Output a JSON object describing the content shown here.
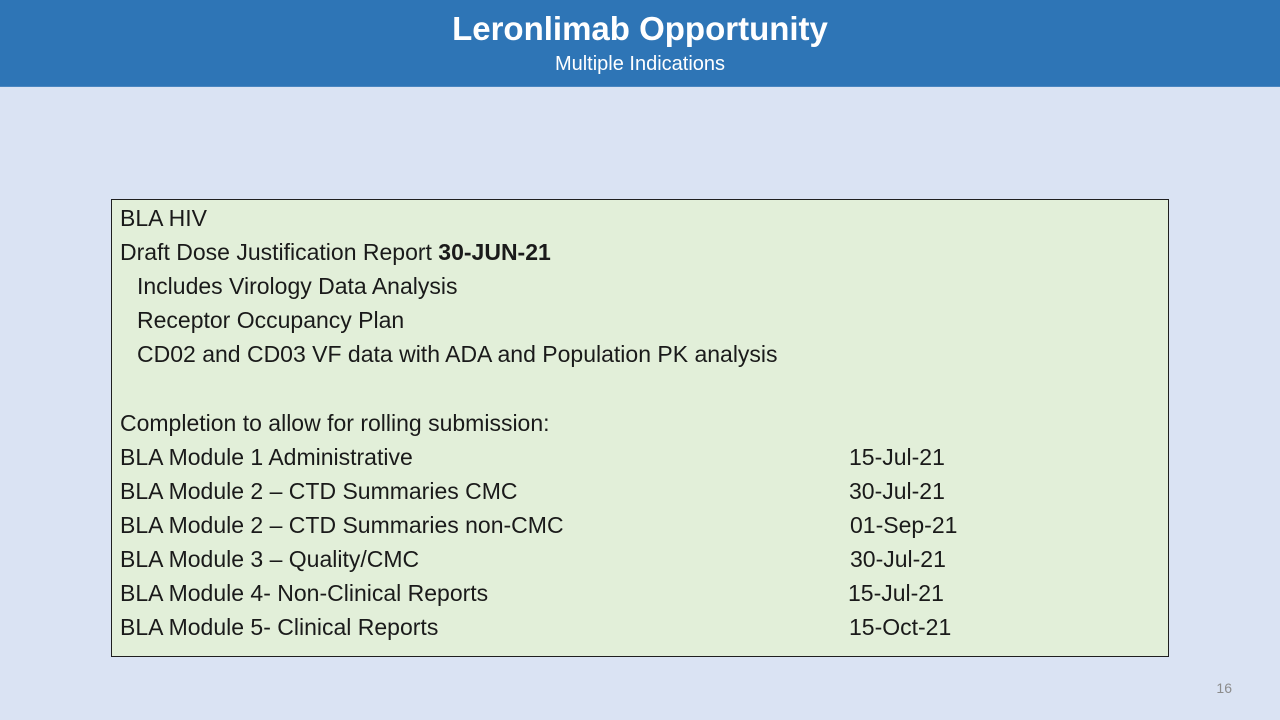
{
  "header": {
    "title": "Leronlimab Opportunity",
    "subtitle": "Multiple Indications",
    "bg_color": "#2e75b6"
  },
  "box": {
    "bg_color": "#e2efd9",
    "heading": "BLA HIV",
    "draft_label": "Draft Dose Justification Report ",
    "draft_date": "30-JUN-21",
    "sub_items": [
      "Includes Virology Data Analysis",
      "Receptor Occupancy Plan",
      "CD02 and CD03 VF data with ADA and Population PK analysis"
    ],
    "completion_label": "Completion to allow for rolling submission:",
    "modules": [
      {
        "label": "BLA Module 1 Administrative",
        "date": "15-Jul-21"
      },
      {
        "label": "BLA Module 2 – CTD Summaries CMC",
        "date": "30-Jul-21"
      },
      {
        "label": "BLA Module 2 – CTD Summaries non-CMC",
        "date": "01-Sep-21"
      },
      {
        "label": "BLA Module 3 – Quality/CMC",
        "date": "30-Jul-21"
      },
      {
        "label": "BLA Module 4- Non-Clinical Reports",
        "date": "15-Jul-21"
      },
      {
        "label": "BLA Module 5- Clinical Reports",
        "date": "15-Oct-21"
      }
    ]
  },
  "page_number": "16"
}
